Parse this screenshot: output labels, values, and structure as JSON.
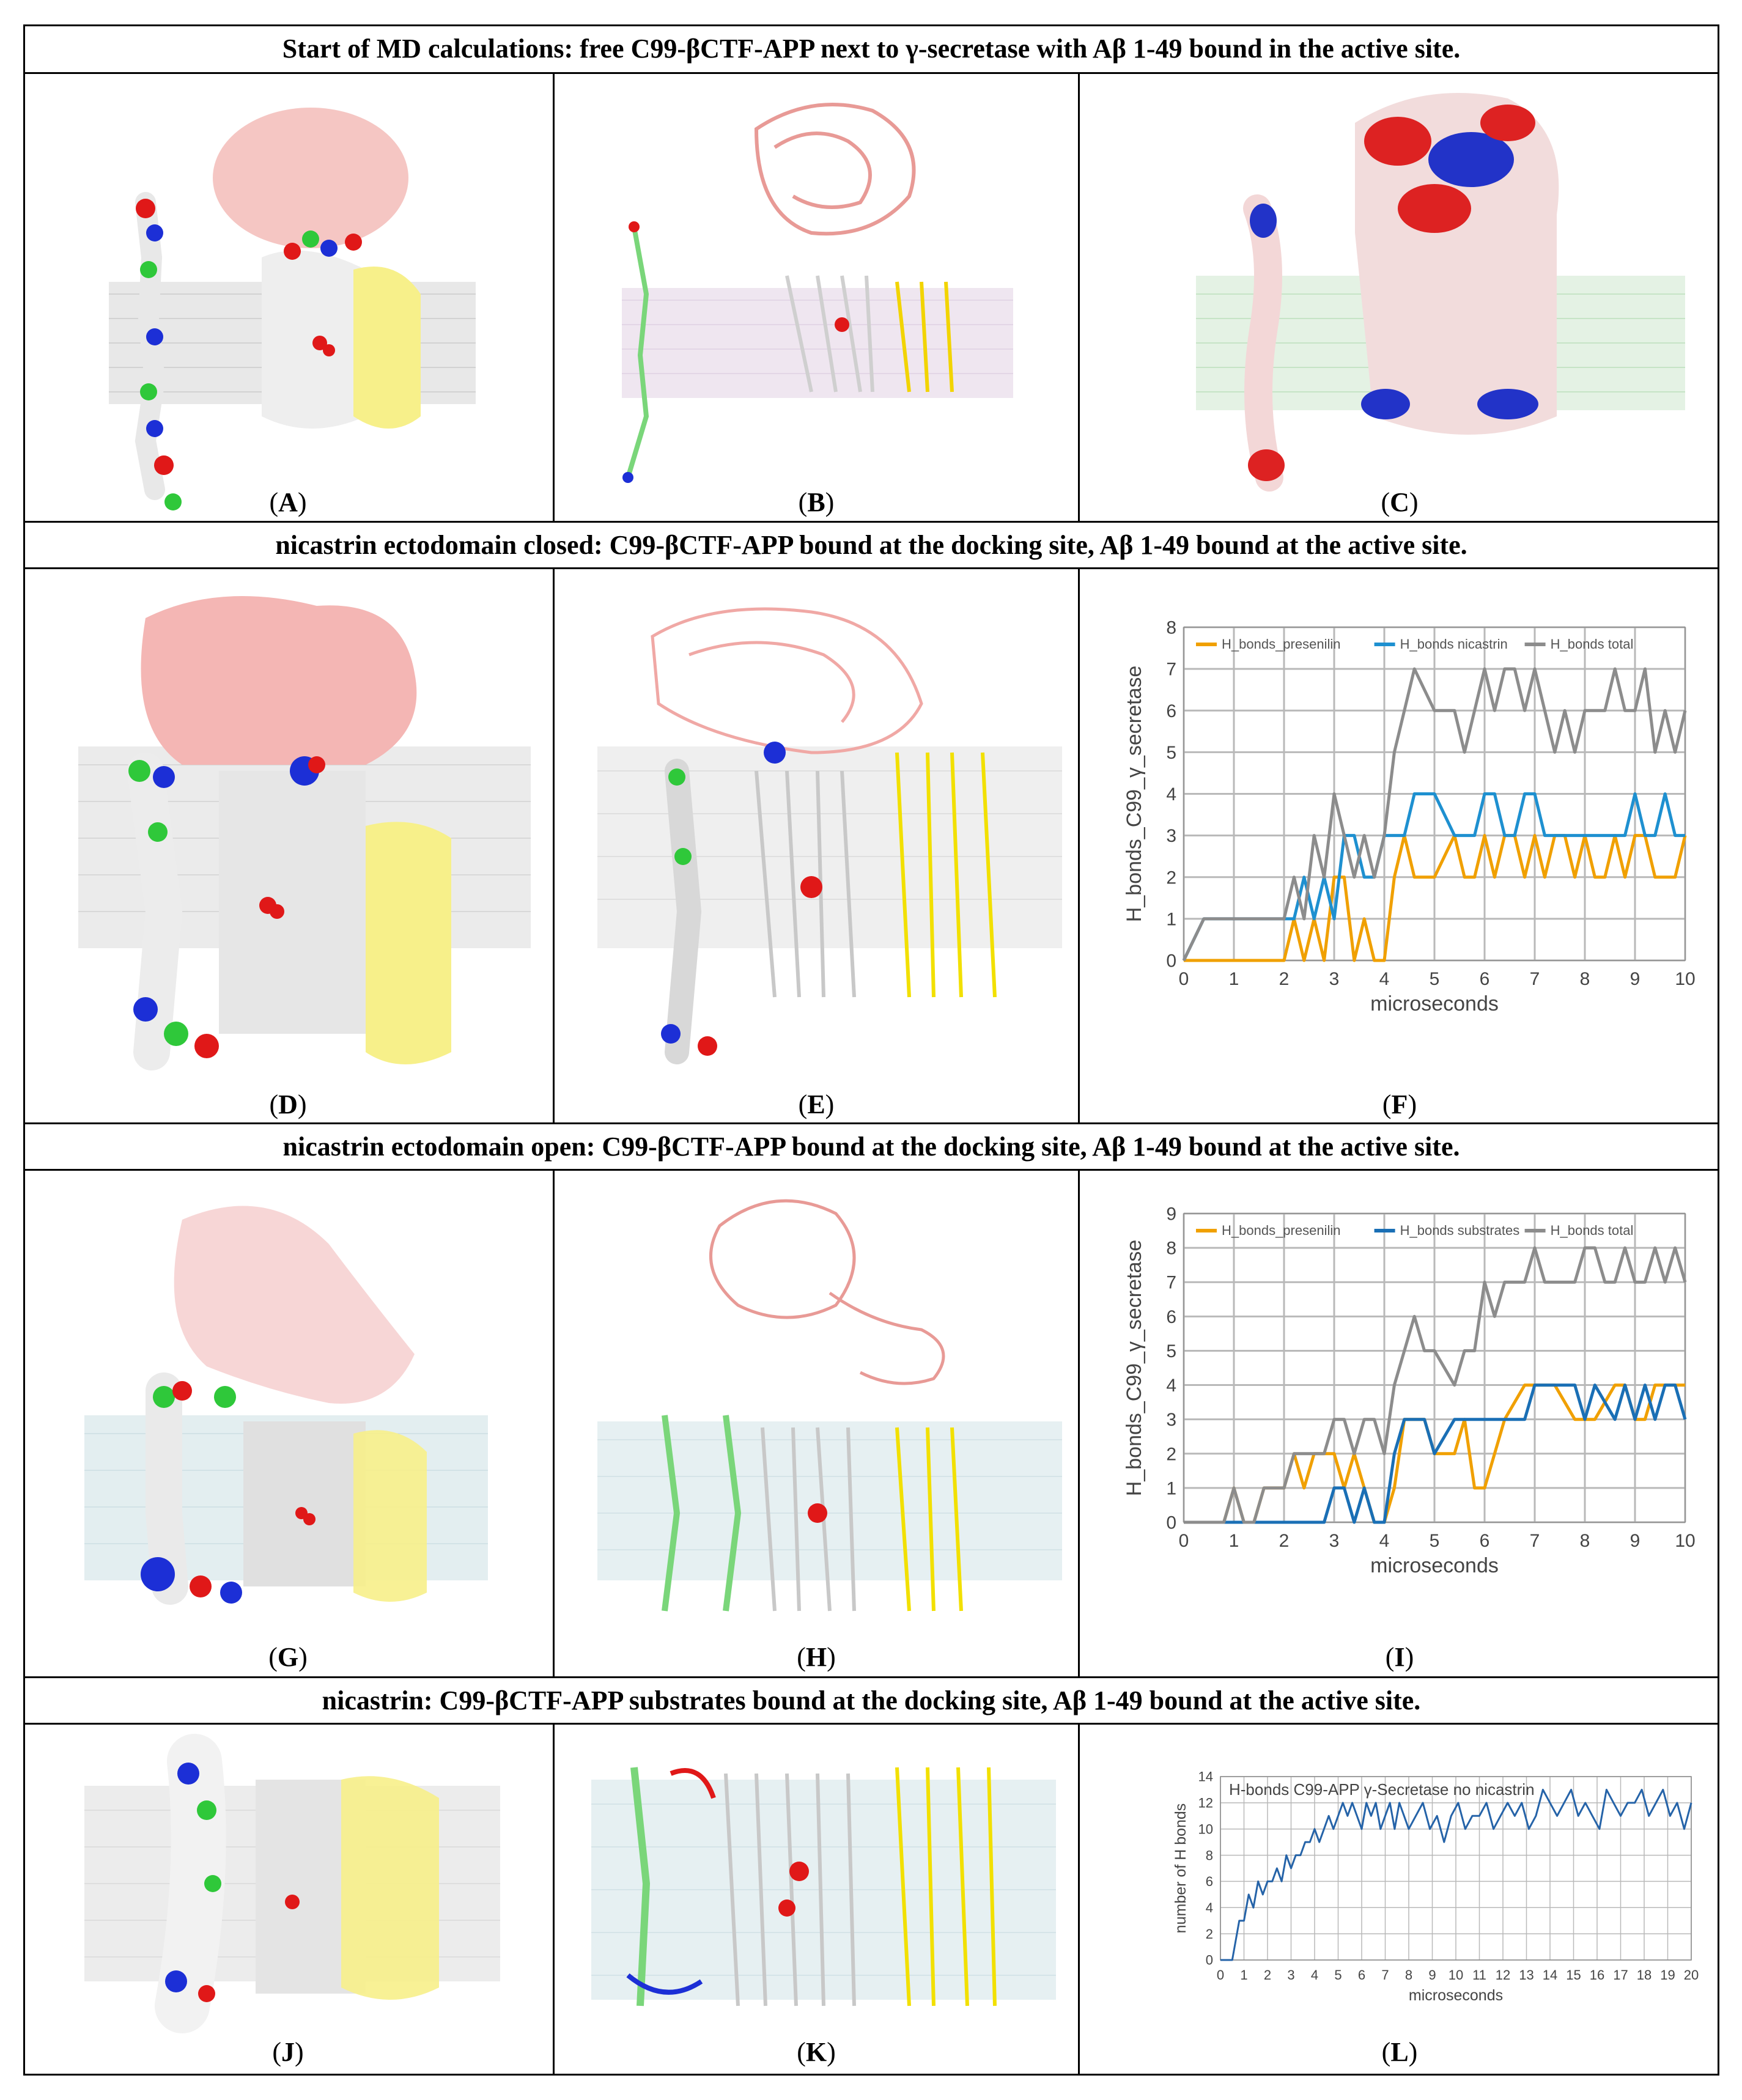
{
  "rows": [
    {
      "title": "Start of MD calculations: free C99-βCTF-APP next to γ-secretase with Aβ 1-49 bound in the active site."
    },
    {
      "title": "nicastrin ectodomain closed: C99-βCTF-APP bound at the docking site, Aβ 1-49 bound at the active site."
    },
    {
      "title": "nicastrin ectodomain open: C99-βCTF-APP bound at the docking site, Aβ 1-49 bound at the active site."
    },
    {
      "title": "nicastrin: C99-βCTF-APP substrates bound at the docking site, Aβ 1-49 bound at the active site."
    }
  ],
  "panels": {
    "A": "A",
    "B": "B",
    "C": "C",
    "D": "D",
    "E": "E",
    "F": "F",
    "G": "G",
    "H": "H",
    "I": "I",
    "J": "J",
    "K": "K",
    "L": "L"
  },
  "colors": {
    "nicastrin": "#f4b6b4",
    "presenilin": "#e6e6e6",
    "aph": "#f7f08a",
    "membrane": "#c9c9c9",
    "substrate_green": "#2fc83a",
    "substrate_blue": "#1c2fd6",
    "substrate_red": "#e01818",
    "presenilin_line": "#f0a000",
    "nicastrin_line": "#1e90d0",
    "total_line": "#8c8c8c",
    "substrates_line": "#1a6fb5",
    "hbonds_line": "#2563a8"
  },
  "chart_data": [
    {
      "panel": "F",
      "type": "line",
      "xlabel": "microseconds",
      "ylabel": "H_bonds_C99_γ_secretase",
      "xlim": [
        0,
        10
      ],
      "ylim": [
        0,
        8
      ],
      "xticks": [
        "0",
        "1",
        "2",
        "3",
        "4",
        "5",
        "6",
        "7",
        "8",
        "9",
        "10"
      ],
      "yticks": [
        "0",
        "1",
        "2",
        "3",
        "4",
        "5",
        "6",
        "7",
        "8"
      ],
      "legend_position": "top",
      "grid": true,
      "series": [
        {
          "name": "H_bonds_presenilin",
          "color": "#f0a000",
          "x": [
            0,
            0.4,
            1,
            2,
            2.2,
            2.4,
            2.6,
            2.8,
            3,
            3.2,
            3.4,
            3.6,
            3.8,
            4,
            4.2,
            4.4,
            4.6,
            5,
            5.4,
            5.6,
            5.8,
            6,
            6.2,
            6.4,
            6.6,
            6.8,
            7,
            7.2,
            7.4,
            7.6,
            7.8,
            8,
            8.2,
            8.4,
            8.6,
            8.8,
            9,
            9.2,
            9.4,
            9.6,
            9.8,
            10
          ],
          "y": [
            0,
            0,
            0,
            0,
            1,
            0,
            1,
            0,
            2,
            2,
            0,
            1,
            0,
            0,
            2,
            3,
            2,
            2,
            3,
            2,
            2,
            3,
            2,
            3,
            3,
            2,
            3,
            2,
            3,
            3,
            2,
            3,
            2,
            2,
            3,
            2,
            3,
            3,
            2,
            2,
            2,
            3
          ]
        },
        {
          "name": "H_bonds nicastrin",
          "color": "#1e90d0",
          "x": [
            0,
            0.4,
            1,
            2,
            2.2,
            2.4,
            2.6,
            2.8,
            3,
            3.2,
            3.4,
            3.6,
            3.8,
            4,
            4.2,
            4.4,
            4.6,
            5,
            5.4,
            5.6,
            5.8,
            6,
            6.2,
            6.4,
            6.6,
            6.8,
            7,
            7.2,
            7.4,
            7.6,
            7.8,
            8,
            8.2,
            8.4,
            8.6,
            8.8,
            9,
            9.2,
            9.4,
            9.6,
            9.8,
            10
          ],
          "y": [
            0,
            1,
            1,
            1,
            1,
            2,
            1,
            2,
            1,
            3,
            3,
            2,
            2,
            3,
            3,
            3,
            4,
            4,
            3,
            3,
            3,
            4,
            4,
            3,
            3,
            4,
            4,
            3,
            3,
            3,
            3,
            3,
            3,
            3,
            3,
            3,
            4,
            3,
            3,
            4,
            3,
            3
          ]
        },
        {
          "name": "H_bonds total",
          "color": "#8c8c8c",
          "x": [
            0,
            0.4,
            1,
            2,
            2.2,
            2.4,
            2.6,
            2.8,
            3,
            3.2,
            3.4,
            3.6,
            3.8,
            4,
            4.2,
            4.4,
            4.6,
            5,
            5.4,
            5.6,
            5.8,
            6,
            6.2,
            6.4,
            6.6,
            6.8,
            7,
            7.2,
            7.4,
            7.6,
            7.8,
            8,
            8.2,
            8.4,
            8.6,
            8.8,
            9,
            9.2,
            9.4,
            9.6,
            9.8,
            10
          ],
          "y": [
            0,
            1,
            1,
            1,
            2,
            1,
            3,
            2,
            4,
            3,
            2,
            3,
            2,
            3,
            5,
            6,
            7,
            6,
            6,
            5,
            6,
            7,
            6,
            7,
            7,
            6,
            7,
            6,
            5,
            6,
            5,
            6,
            6,
            6,
            7,
            6,
            6,
            7,
            5,
            6,
            5,
            6
          ]
        }
      ]
    },
    {
      "panel": "I",
      "type": "line",
      "xlabel": "microseconds",
      "ylabel": "H_bonds_C99_γ_secretase",
      "xlim": [
        0,
        10
      ],
      "ylim": [
        0,
        9
      ],
      "xticks": [
        "0",
        "1",
        "2",
        "3",
        "4",
        "5",
        "6",
        "7",
        "8",
        "9",
        "10"
      ],
      "yticks": [
        "0",
        "1",
        "2",
        "3",
        "4",
        "5",
        "6",
        "7",
        "8",
        "9"
      ],
      "legend_position": "top",
      "grid": true,
      "series": [
        {
          "name": "H_bonds_presenilin",
          "color": "#f0a000",
          "x": [
            0,
            0.8,
            1,
            1.2,
            1.4,
            1.6,
            2,
            2.2,
            2.4,
            2.6,
            2.8,
            3,
            3.2,
            3.4,
            3.6,
            3.8,
            4,
            4.2,
            4.4,
            4.8,
            5,
            5.4,
            5.6,
            5.8,
            6,
            6.4,
            6.8,
            7,
            7.4,
            7.8,
            8,
            8.2,
            8.6,
            8.8,
            9,
            9.2,
            9.4,
            9.6,
            9.8,
            10
          ],
          "y": [
            0,
            0,
            1,
            0,
            0,
            1,
            1,
            2,
            1,
            2,
            2,
            2,
            1,
            2,
            1,
            0,
            0,
            1,
            3,
            3,
            2,
            2,
            3,
            1,
            1,
            3,
            4,
            4,
            4,
            3,
            3,
            3,
            4,
            4,
            3,
            3,
            4,
            4,
            4,
            4
          ]
        },
        {
          "name": "H_bonds substrates",
          "color": "#1a6fb5",
          "x": [
            0,
            1,
            2,
            2.8,
            3,
            3.2,
            3.4,
            3.6,
            3.8,
            4,
            4.2,
            4.4,
            4.8,
            5,
            5.4,
            5.8,
            6,
            6.4,
            6.8,
            7,
            7.4,
            7.8,
            8,
            8.2,
            8.6,
            8.8,
            9,
            9.2,
            9.4,
            9.6,
            9.8,
            10
          ],
          "y": [
            0,
            0,
            0,
            0,
            1,
            1,
            0,
            1,
            0,
            0,
            2,
            3,
            3,
            2,
            3,
            3,
            3,
            3,
            3,
            4,
            4,
            4,
            3,
            4,
            3,
            4,
            3,
            4,
            3,
            4,
            4,
            3
          ]
        },
        {
          "name": "H_bonds total",
          "color": "#8c8c8c",
          "x": [
            0,
            0.8,
            1,
            1.2,
            1.4,
            1.6,
            2,
            2.2,
            2.4,
            2.6,
            2.8,
            3,
            3.2,
            3.4,
            3.6,
            3.8,
            4,
            4.2,
            4.4,
            4.6,
            4.8,
            5,
            5.4,
            5.6,
            5.8,
            6,
            6.2,
            6.4,
            6.6,
            6.8,
            7,
            7.2,
            7.4,
            7.6,
            7.8,
            8,
            8.2,
            8.4,
            8.6,
            8.8,
            9,
            9.2,
            9.4,
            9.6,
            9.8,
            10
          ],
          "y": [
            0,
            0,
            1,
            0,
            0,
            1,
            1,
            2,
            2,
            2,
            2,
            3,
            3,
            2,
            3,
            3,
            2,
            4,
            5,
            6,
            5,
            5,
            4,
            5,
            5,
            7,
            6,
            7,
            7,
            7,
            8,
            7,
            7,
            7,
            7,
            8,
            8,
            7,
            7,
            8,
            7,
            7,
            8,
            7,
            8,
            7
          ]
        }
      ]
    },
    {
      "panel": "L",
      "type": "line",
      "title": "H-bonds C99-APP γ-Secretase no nicastrin",
      "xlabel": "microseconds",
      "ylabel": "number of H bonds",
      "xlim": [
        0,
        20
      ],
      "ylim": [
        0,
        14
      ],
      "xticks": [
        "0",
        "1",
        "2",
        "3",
        "4",
        "5",
        "6",
        "7",
        "8",
        "9",
        "10",
        "11",
        "12",
        "13",
        "14",
        "15",
        "16",
        "17",
        "18",
        "19",
        "20"
      ],
      "yticks": [
        "0",
        "2",
        "4",
        "6",
        "8",
        "10",
        "12",
        "14"
      ],
      "grid": true,
      "series": [
        {
          "name": "H-bonds C99-APP γ-Secretase no nicastrin",
          "color": "#2563a8",
          "x": [
            0,
            0.5,
            0.8,
            1,
            1.2,
            1.4,
            1.6,
            1.8,
            2,
            2.2,
            2.4,
            2.6,
            2.8,
            3,
            3.2,
            3.4,
            3.6,
            3.8,
            4,
            4.2,
            4.4,
            4.6,
            4.8,
            5,
            5.2,
            5.4,
            5.6,
            5.8,
            6,
            6.2,
            6.4,
            6.6,
            6.8,
            7,
            7.2,
            7.4,
            7.6,
            7.8,
            8,
            8.3,
            8.6,
            8.9,
            9.2,
            9.5,
            9.8,
            10.1,
            10.4,
            10.7,
            11,
            11.3,
            11.6,
            11.9,
            12.2,
            12.5,
            12.8,
            13.1,
            13.4,
            13.7,
            14,
            14.3,
            14.6,
            14.9,
            15.2,
            15.5,
            15.8,
            16.1,
            16.4,
            16.7,
            17,
            17.3,
            17.6,
            17.9,
            18.2,
            18.5,
            18.8,
            19.1,
            19.4,
            19.7,
            20
          ],
          "y": [
            0,
            0,
            3,
            3,
            5,
            4,
            6,
            5,
            6,
            6,
            7,
            6,
            8,
            7,
            8,
            8,
            9,
            9,
            10,
            9,
            10,
            11,
            10,
            11,
            12,
            11,
            12,
            11,
            10,
            12,
            11,
            12,
            10,
            11,
            12,
            10,
            12,
            11,
            10,
            11,
            12,
            10,
            11,
            9,
            11,
            12,
            10,
            11,
            11,
            12,
            10,
            11,
            12,
            11,
            12,
            10,
            11,
            13,
            12,
            11,
            12,
            13,
            11,
            12,
            11,
            10,
            13,
            12,
            11,
            12,
            12,
            13,
            11,
            12,
            13,
            11,
            12,
            10,
            12
          ]
        }
      ]
    }
  ]
}
